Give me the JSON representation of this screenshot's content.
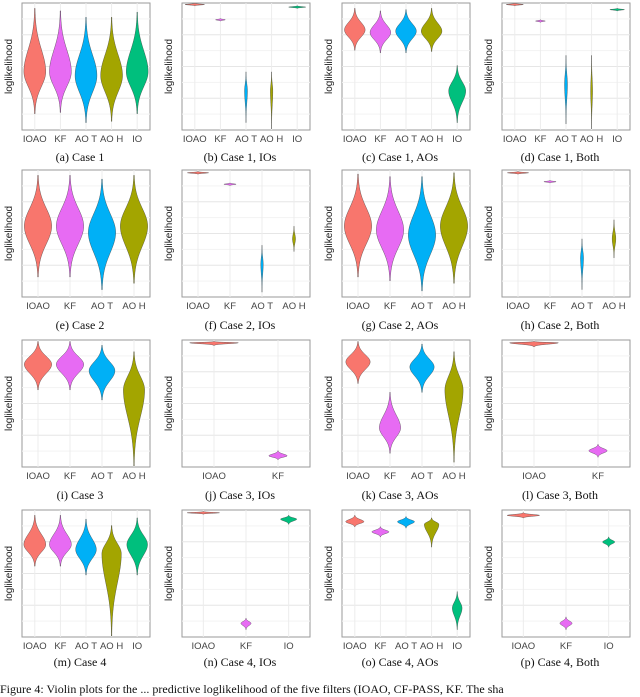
{
  "colors": {
    "IOAO": "#F8766D",
    "KF": "#E76BF3",
    "AO T": "#00B0F6",
    "AO H": "#A3A500",
    "IO": "#00BF7D"
  },
  "caption": "Figure 4: Violin plots for the ... predictive loglikelihood of the five filters (IOAO, CF-PASS, KF. The sha",
  "chart_data": [
    {
      "type": "violin",
      "label": "(a) Case 1",
      "ylabel": "loglikelihood",
      "ylim": [
        0,
        1
      ],
      "grid": true,
      "categories": [
        "IOAO",
        "KF",
        "AO T",
        "AO H",
        "IO"
      ],
      "violins": [
        [
          0.12,
          0.45,
          0.95,
          0.9
        ],
        [
          0.13,
          0.45,
          0.93,
          0.9
        ],
        [
          0.05,
          0.42,
          0.88,
          0.9
        ],
        [
          0.06,
          0.42,
          0.88,
          0.9
        ],
        [
          0.12,
          0.45,
          0.92,
          0.9
        ]
      ]
    },
    {
      "type": "violin",
      "label": "(b) Case 1, IOs",
      "ylabel": "loglikelihood",
      "ylim": [
        0,
        1
      ],
      "grid": true,
      "categories": [
        "IOAO",
        "KF",
        "AO T",
        "AO H",
        "IO"
      ],
      "violins": [
        [
          0.97,
          0.98,
          0.99,
          0.8
        ],
        [
          0.85,
          0.86,
          0.87,
          0.4
        ],
        [
          0.05,
          0.3,
          0.45,
          0.12
        ],
        [
          0.0,
          0.3,
          0.45,
          0.1
        ],
        [
          0.95,
          0.96,
          0.97,
          0.7
        ]
      ]
    },
    {
      "type": "violin",
      "label": "(c) Case 1, AOs",
      "ylabel": "loglikelihood",
      "ylim": [
        0,
        1
      ],
      "grid": true,
      "categories": [
        "IOAO",
        "KF",
        "AO T",
        "AO H",
        "IO"
      ],
      "violins": [
        [
          0.62,
          0.78,
          0.95,
          0.85
        ],
        [
          0.6,
          0.76,
          0.93,
          0.85
        ],
        [
          0.6,
          0.77,
          0.94,
          0.85
        ],
        [
          0.61,
          0.77,
          0.95,
          0.85
        ],
        [
          0.05,
          0.3,
          0.5,
          0.7
        ]
      ]
    },
    {
      "type": "violin",
      "label": "(d) Case 1, Both",
      "ylabel": "loglikelihood",
      "ylim": [
        0,
        1
      ],
      "grid": true,
      "categories": [
        "IOAO",
        "KF",
        "AO T",
        "AO H",
        "IO"
      ],
      "violins": [
        [
          0.97,
          0.98,
          0.99,
          0.7
        ],
        [
          0.84,
          0.85,
          0.86,
          0.4
        ],
        [
          0.04,
          0.35,
          0.58,
          0.12
        ],
        [
          0.0,
          0.3,
          0.58,
          0.08
        ],
        [
          0.93,
          0.94,
          0.95,
          0.6
        ]
      ]
    },
    {
      "type": "violin",
      "label": "(e) Case 2",
      "ylabel": "loglikelihood",
      "ylim": [
        0,
        1
      ],
      "grid": true,
      "categories": [
        "IOAO",
        "KF",
        "AO T",
        "AO H"
      ],
      "violins": [
        [
          0.15,
          0.55,
          0.95,
          0.9
        ],
        [
          0.15,
          0.55,
          0.95,
          0.9
        ],
        [
          0.05,
          0.5,
          0.92,
          0.9
        ],
        [
          0.1,
          0.55,
          0.95,
          0.9
        ]
      ]
    },
    {
      "type": "violin",
      "label": "(f) Case 2, IOs",
      "ylabel": "loglikelihood",
      "ylim": [
        0,
        1
      ],
      "grid": true,
      "categories": [
        "IOAO",
        "KF",
        "AO T",
        "AO H"
      ],
      "violins": [
        [
          0.96,
          0.97,
          0.98,
          0.7
        ],
        [
          0.87,
          0.88,
          0.89,
          0.4
        ],
        [
          0.03,
          0.25,
          0.4,
          0.08
        ],
        [
          0.35,
          0.45,
          0.55,
          0.1
        ]
      ]
    },
    {
      "type": "violin",
      "label": "(g) Case 2, AOs",
      "ylabel": "loglikelihood",
      "ylim": [
        0,
        1
      ],
      "grid": true,
      "categories": [
        "IOAO",
        "KF",
        "AO T",
        "AO H"
      ],
      "violins": [
        [
          0.15,
          0.55,
          0.96,
          0.9
        ],
        [
          0.12,
          0.52,
          0.94,
          0.9
        ],
        [
          0.04,
          0.48,
          0.94,
          0.9
        ],
        [
          0.1,
          0.55,
          0.97,
          0.9
        ]
      ]
    },
    {
      "type": "violin",
      "label": "(h) Case 2, Both",
      "ylabel": "loglikelihood",
      "ylim": [
        0,
        1
      ],
      "grid": true,
      "categories": [
        "IOAO",
        "KF",
        "AO T",
        "AO H"
      ],
      "violins": [
        [
          0.96,
          0.97,
          0.98,
          0.7
        ],
        [
          0.89,
          0.9,
          0.91,
          0.4
        ],
        [
          0.05,
          0.3,
          0.45,
          0.1
        ],
        [
          0.3,
          0.45,
          0.6,
          0.12
        ]
      ]
    },
    {
      "type": "violin",
      "label": "(i) Case 3",
      "ylabel": "loglikelihood",
      "ylim": [
        0,
        1
      ],
      "grid": true,
      "categories": [
        "IOAO",
        "KF",
        "AO T",
        "AO H"
      ],
      "violins": [
        [
          0.6,
          0.8,
          0.98,
          0.9
        ],
        [
          0.6,
          0.8,
          0.98,
          0.9
        ],
        [
          0.52,
          0.75,
          0.95,
          0.85
        ],
        [
          0.0,
          0.6,
          0.9,
          0.7
        ]
      ]
    },
    {
      "type": "violin",
      "label": "(j) Case 3, IOs",
      "ylabel": "loglikelihood",
      "ylim": [
        0,
        1
      ],
      "grid": true,
      "categories": [
        "IOAO",
        "KF"
      ],
      "violins": [
        [
          0.95,
          0.97,
          0.98,
          0.8
        ],
        [
          0.05,
          0.08,
          0.12,
          0.3
        ]
      ]
    },
    {
      "type": "violin",
      "label": "(k) Case 3, AOs",
      "ylabel": "loglikelihood",
      "ylim": [
        0,
        1
      ],
      "grid": true,
      "categories": [
        "IOAO",
        "KF",
        "AO T",
        "AO H"
      ],
      "violins": [
        [
          0.65,
          0.82,
          0.98,
          0.8
        ],
        [
          0.1,
          0.3,
          0.58,
          0.7
        ],
        [
          0.58,
          0.78,
          0.96,
          0.8
        ],
        [
          0.03,
          0.6,
          0.9,
          0.6
        ]
      ]
    },
    {
      "type": "violin",
      "label": "(l) Case 3, Both",
      "ylabel": "loglikelihood",
      "ylim": [
        0,
        1
      ],
      "grid": true,
      "categories": [
        "IOAO",
        "KF"
      ],
      "violins": [
        [
          0.94,
          0.97,
          0.98,
          0.8
        ],
        [
          0.07,
          0.12,
          0.17,
          0.3
        ]
      ]
    },
    {
      "type": "violin",
      "label": "(m) Case 4",
      "ylabel": "loglikelihood",
      "ylim": [
        0,
        1
      ],
      "grid": true,
      "categories": [
        "IOAO",
        "KF",
        "AO T",
        "AO H",
        "IO"
      ],
      "violins": [
        [
          0.55,
          0.72,
          0.95,
          0.9
        ],
        [
          0.55,
          0.72,
          0.95,
          0.9
        ],
        [
          0.48,
          0.68,
          0.92,
          0.85
        ],
        [
          0.0,
          0.65,
          0.87,
          0.8
        ],
        [
          0.48,
          0.72,
          0.93,
          0.85
        ]
      ]
    },
    {
      "type": "violin",
      "label": "(n) Case 4, IOs",
      "ylabel": "loglikelihood",
      "ylim": [
        0,
        1
      ],
      "grid": true,
      "categories": [
        "IOAO",
        "KF",
        "IO"
      ],
      "violins": [
        [
          0.96,
          0.97,
          0.98,
          0.8
        ],
        [
          0.05,
          0.1,
          0.14,
          0.25
        ],
        [
          0.88,
          0.92,
          0.95,
          0.4
        ]
      ]
    },
    {
      "type": "violin",
      "label": "(o) Case 4, AOs",
      "ylabel": "loglikelihood",
      "ylim": [
        0,
        1
      ],
      "grid": true,
      "categories": [
        "IOAO",
        "KF",
        "AO T",
        "AO H",
        "IO"
      ],
      "violins": [
        [
          0.86,
          0.9,
          0.95,
          0.75
        ],
        [
          0.78,
          0.82,
          0.86,
          0.7
        ],
        [
          0.85,
          0.9,
          0.94,
          0.7
        ],
        [
          0.7,
          0.88,
          0.93,
          0.6
        ],
        [
          0.05,
          0.22,
          0.35,
          0.4
        ]
      ]
    },
    {
      "type": "violin",
      "label": "(p) Case 4, Both",
      "ylabel": "loglikelihood",
      "ylim": [
        0,
        1
      ],
      "grid": true,
      "categories": [
        "IOAO",
        "KF",
        "IO"
      ],
      "violins": [
        [
          0.93,
          0.95,
          0.97,
          0.8
        ],
        [
          0.05,
          0.1,
          0.15,
          0.3
        ],
        [
          0.7,
          0.74,
          0.78,
          0.3
        ]
      ]
    }
  ]
}
